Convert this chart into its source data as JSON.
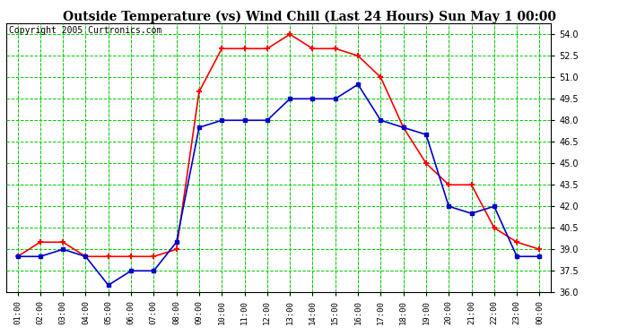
{
  "title": "Outside Temperature (vs) Wind Chill (Last 24 Hours) Sun May 1 00:00",
  "copyright": "Copyright 2005 Curtronics.com",
  "hours": [
    "01:00",
    "02:00",
    "03:00",
    "04:00",
    "05:00",
    "06:00",
    "07:00",
    "08:00",
    "09:00",
    "10:00",
    "11:00",
    "12:00",
    "13:00",
    "14:00",
    "15:00",
    "16:00",
    "17:00",
    "18:00",
    "19:00",
    "20:00",
    "21:00",
    "22:00",
    "23:00",
    "00:00"
  ],
  "outside_temp": [
    38.5,
    39.5,
    39.5,
    38.5,
    38.5,
    38.5,
    38.5,
    39.0,
    50.0,
    53.0,
    53.0,
    53.0,
    54.0,
    53.0,
    53.0,
    52.5,
    51.0,
    47.5,
    45.0,
    43.5,
    43.5,
    40.5,
    39.5,
    39.0
  ],
  "wind_chill": [
    38.5,
    38.5,
    39.0,
    38.5,
    36.5,
    37.5,
    37.5,
    39.5,
    47.5,
    48.0,
    48.0,
    48.0,
    49.5,
    49.5,
    49.5,
    50.5,
    48.0,
    47.5,
    47.0,
    42.0,
    41.5,
    42.0,
    38.5,
    38.5
  ],
  "temp_color": "#ff0000",
  "chill_color": "#0000cc",
  "ylim": [
    36.0,
    54.75
  ],
  "yticks": [
    36.0,
    37.5,
    39.0,
    40.5,
    42.0,
    43.5,
    45.0,
    46.5,
    48.0,
    49.5,
    51.0,
    52.5,
    54.0
  ],
  "bg_color": "#ffffff",
  "plot_bg": "#ffffff",
  "grid_color": "#00cc00",
  "title_fontsize": 10,
  "copyright_fontsize": 7
}
